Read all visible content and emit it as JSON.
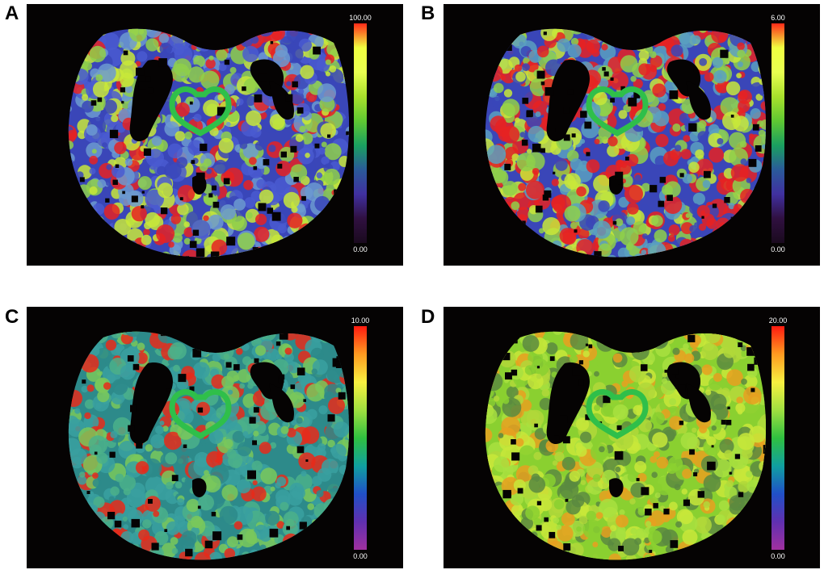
{
  "figure": {
    "panels": [
      {
        "id": "A",
        "label": "A",
        "scale_max": "100.00",
        "scale_min": "0.00",
        "colormap": [
          "#ff2a18",
          "#f0ff40",
          "#e8ff50",
          "#a8e02c",
          "#5fc832",
          "#1aa060",
          "#2a5a9a",
          "#4030a0",
          "#301040",
          "#1a0a1e"
        ],
        "tissue": [
          "#3a46b8",
          "#4a5ad0",
          "#6c9ad0",
          "#8fd04a",
          "#c8e83a",
          "#e62222"
        ]
      },
      {
        "id": "B",
        "label": "B",
        "scale_max": "6.00",
        "scale_min": "0.00",
        "colormap": [
          "#ff2a18",
          "#f0ff40",
          "#e8ff50",
          "#a8e02c",
          "#5fc832",
          "#1aa060",
          "#2a5a9a",
          "#4030a0",
          "#301040",
          "#1a0a1e"
        ],
        "tissue": [
          "#3a46b8",
          "#5aa0c0",
          "#8fd04a",
          "#c8e83a",
          "#e62222",
          "#e62222"
        ]
      },
      {
        "id": "C",
        "label": "C",
        "scale_max": "10.00",
        "scale_min": "0.00",
        "colormap": [
          "#ff1a10",
          "#ff9a20",
          "#f8f040",
          "#a0e040",
          "#30c040",
          "#10a0a0",
          "#2050c8",
          "#6030b0",
          "#a030a0"
        ],
        "tissue": [
          "#2d8a8a",
          "#3aa0a0",
          "#4bb08a",
          "#7ac85a",
          "#e82a1a",
          "#3aa0a0"
        ]
      },
      {
        "id": "D",
        "label": "D",
        "scale_max": "20.00",
        "scale_min": "0.00",
        "colormap": [
          "#ff1a10",
          "#ff9a20",
          "#f8f040",
          "#a0e040",
          "#30c040",
          "#10a0a0",
          "#2050c8",
          "#6030b0",
          "#a030a0"
        ],
        "tissue": [
          "#8ad030",
          "#a8e040",
          "#c8e83a",
          "#b0d83a",
          "#e8a020",
          "#5a8a40"
        ]
      }
    ],
    "roi_color": "#2fbf4a"
  }
}
